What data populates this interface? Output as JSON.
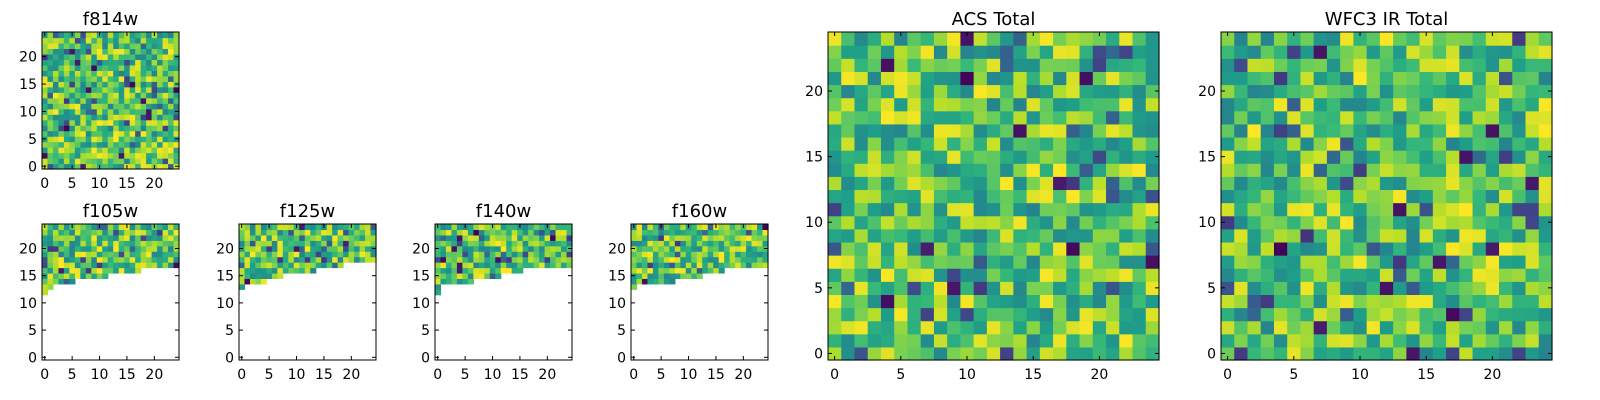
{
  "chart_data": [
    {
      "type": "heatmap",
      "title": "f814w",
      "xticks": [
        0,
        5,
        10,
        15,
        20
      ],
      "yticks": [
        0,
        5,
        10,
        15,
        20
      ],
      "xlim": [
        0,
        25
      ],
      "ylim": [
        0,
        25
      ],
      "colormap": "viridis",
      "coverage": "full"
    },
    {
      "type": "heatmap",
      "title": "f105w",
      "xticks": [
        0,
        5,
        10,
        15,
        20
      ],
      "yticks": [
        0,
        5,
        10,
        15,
        20
      ],
      "xlim": [
        0,
        25
      ],
      "ylim": [
        0,
        25
      ],
      "colormap": "viridis",
      "coverage": "partial"
    },
    {
      "type": "heatmap",
      "title": "f125w",
      "xticks": [
        0,
        5,
        10,
        15,
        20
      ],
      "yticks": [
        0,
        5,
        10,
        15,
        20
      ],
      "xlim": [
        0,
        25
      ],
      "ylim": [
        0,
        25
      ],
      "colormap": "viridis",
      "coverage": "partial"
    },
    {
      "type": "heatmap",
      "title": "f140w",
      "xticks": [
        0,
        5,
        10,
        15,
        20
      ],
      "yticks": [
        0,
        5,
        10,
        15,
        20
      ],
      "xlim": [
        0,
        25
      ],
      "ylim": [
        0,
        25
      ],
      "colormap": "viridis",
      "coverage": "partial"
    },
    {
      "type": "heatmap",
      "title": "f160w",
      "xticks": [
        0,
        5,
        10,
        15,
        20
      ],
      "yticks": [
        0,
        5,
        10,
        15,
        20
      ],
      "xlim": [
        0,
        25
      ],
      "ylim": [
        0,
        25
      ],
      "colormap": "viridis",
      "coverage": "partial"
    },
    {
      "type": "heatmap",
      "title": "ACS Total",
      "xticks": [
        0,
        5,
        10,
        15,
        20
      ],
      "yticks": [
        0,
        5,
        10,
        15,
        20
      ],
      "xlim": [
        0,
        25
      ],
      "ylim": [
        0,
        25
      ],
      "colormap": "viridis",
      "coverage": "full"
    },
    {
      "type": "heatmap",
      "title": "WFC3 IR Total",
      "xticks": [
        0,
        5,
        10,
        15,
        20
      ],
      "yticks": [
        0,
        5,
        10,
        15,
        20
      ],
      "xlim": [
        0,
        25
      ],
      "ylim": [
        0,
        25
      ],
      "colormap": "viridis",
      "coverage": "full"
    }
  ]
}
